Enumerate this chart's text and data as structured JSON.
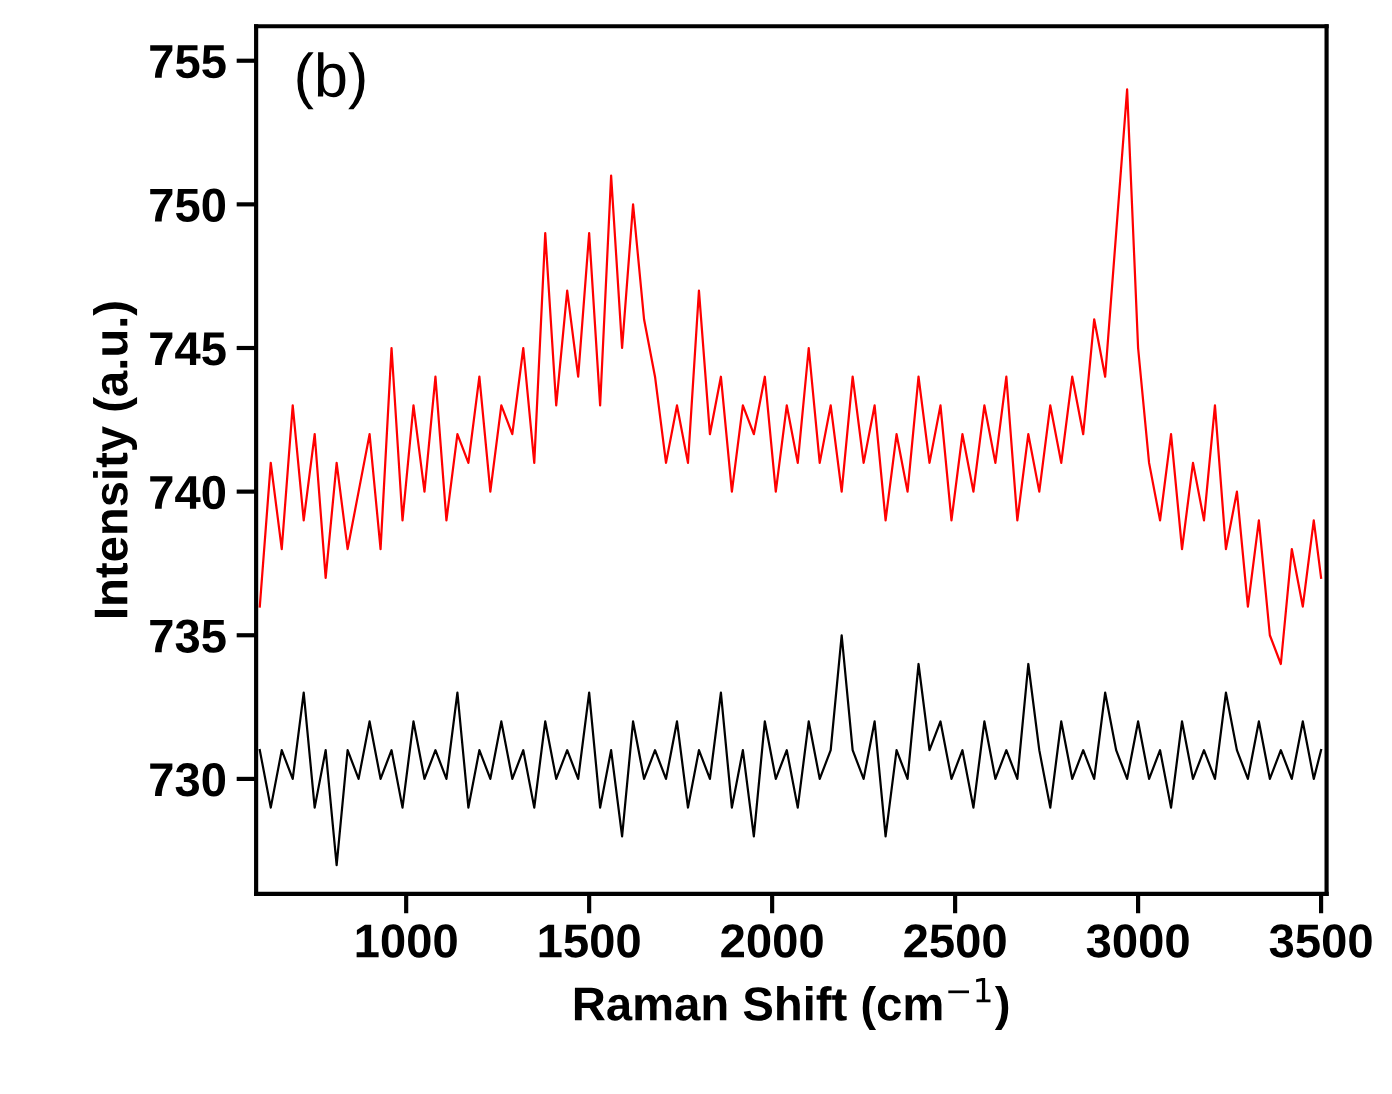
{
  "chart_data": {
    "type": "line",
    "xlabel": "Raman Shift (cm$^{−1}$)",
    "ylabel": "Intensity (a.u.)",
    "annotations": [
      "(b)"
    ],
    "x": [
      600,
      630,
      660,
      690,
      720,
      750,
      780,
      810,
      840,
      870,
      900,
      930,
      960,
      990,
      1020,
      1050,
      1080,
      1110,
      1140,
      1170,
      1200,
      1230,
      1260,
      1290,
      1320,
      1350,
      1380,
      1410,
      1440,
      1470,
      1500,
      1530,
      1560,
      1590,
      1620,
      1650,
      1680,
      1710,
      1740,
      1770,
      1800,
      1830,
      1860,
      1890,
      1920,
      1950,
      1980,
      2010,
      2040,
      2070,
      2100,
      2130,
      2160,
      2190,
      2220,
      2250,
      2280,
      2310,
      2340,
      2370,
      2400,
      2430,
      2460,
      2490,
      2520,
      2550,
      2580,
      2610,
      2640,
      2670,
      2700,
      2730,
      2760,
      2790,
      2820,
      2850,
      2880,
      2910,
      2940,
      2970,
      3000,
      3030,
      3060,
      3090,
      3120,
      3150,
      3180,
      3210,
      3240,
      3270,
      3300,
      3330,
      3360,
      3390,
      3420,
      3450,
      3480,
      3500
    ],
    "series": [
      {
        "color": "#ff0000",
        "values": [
          736,
          741,
          738,
          743,
          739,
          742,
          737,
          741,
          738,
          740,
          742,
          738,
          745,
          739,
          743,
          740,
          744,
          739,
          742,
          741,
          744,
          740,
          743,
          742,
          745,
          741,
          749,
          743,
          747,
          744,
          749,
          743,
          751,
          745,
          750,
          746,
          744,
          741,
          743,
          741,
          747,
          742,
          744,
          740,
          743,
          742,
          744,
          740,
          743,
          741,
          745,
          741,
          743,
          740,
          744,
          741,
          743,
          739,
          742,
          740,
          744,
          741,
          743,
          739,
          742,
          740,
          743,
          741,
          744,
          739,
          742,
          740,
          743,
          741,
          744,
          742,
          746,
          744,
          749,
          754,
          745,
          741,
          739,
          742,
          738,
          741,
          739,
          743,
          738,
          740,
          736,
          739,
          735,
          734,
          738,
          736,
          739,
          737
        ]
      },
      {
        "color": "#000000",
        "values": [
          731,
          729,
          731,
          730,
          733,
          729,
          731,
          727,
          731,
          730,
          732,
          730,
          731,
          729,
          732,
          730,
          731,
          730,
          733,
          729,
          731,
          730,
          732,
          730,
          731,
          729,
          732,
          730,
          731,
          730,
          733,
          729,
          731,
          728,
          732,
          730,
          731,
          730,
          732,
          729,
          731,
          730,
          733,
          729,
          731,
          728,
          732,
          730,
          731,
          729,
          732,
          730,
          731,
          735,
          731,
          730,
          732,
          728,
          731,
          730,
          734,
          731,
          732,
          730,
          731,
          729,
          732,
          730,
          731,
          730,
          734,
          731,
          729,
          732,
          730,
          731,
          730,
          733,
          731,
          730,
          732,
          730,
          731,
          729,
          732,
          730,
          731,
          730,
          733,
          731,
          730,
          732,
          730,
          731,
          730,
          732,
          730,
          731
        ]
      }
    ],
    "xlim": [
      590,
      3515
    ],
    "ylim": [
      726,
      756.2
    ],
    "xticks": [
      1000,
      1500,
      2000,
      2500,
      3000,
      3500
    ],
    "yticks": [
      730,
      735,
      740,
      745,
      750,
      755
    ],
    "grid": false,
    "legend": false,
    "marker": "none",
    "line_style": "solid"
  }
}
